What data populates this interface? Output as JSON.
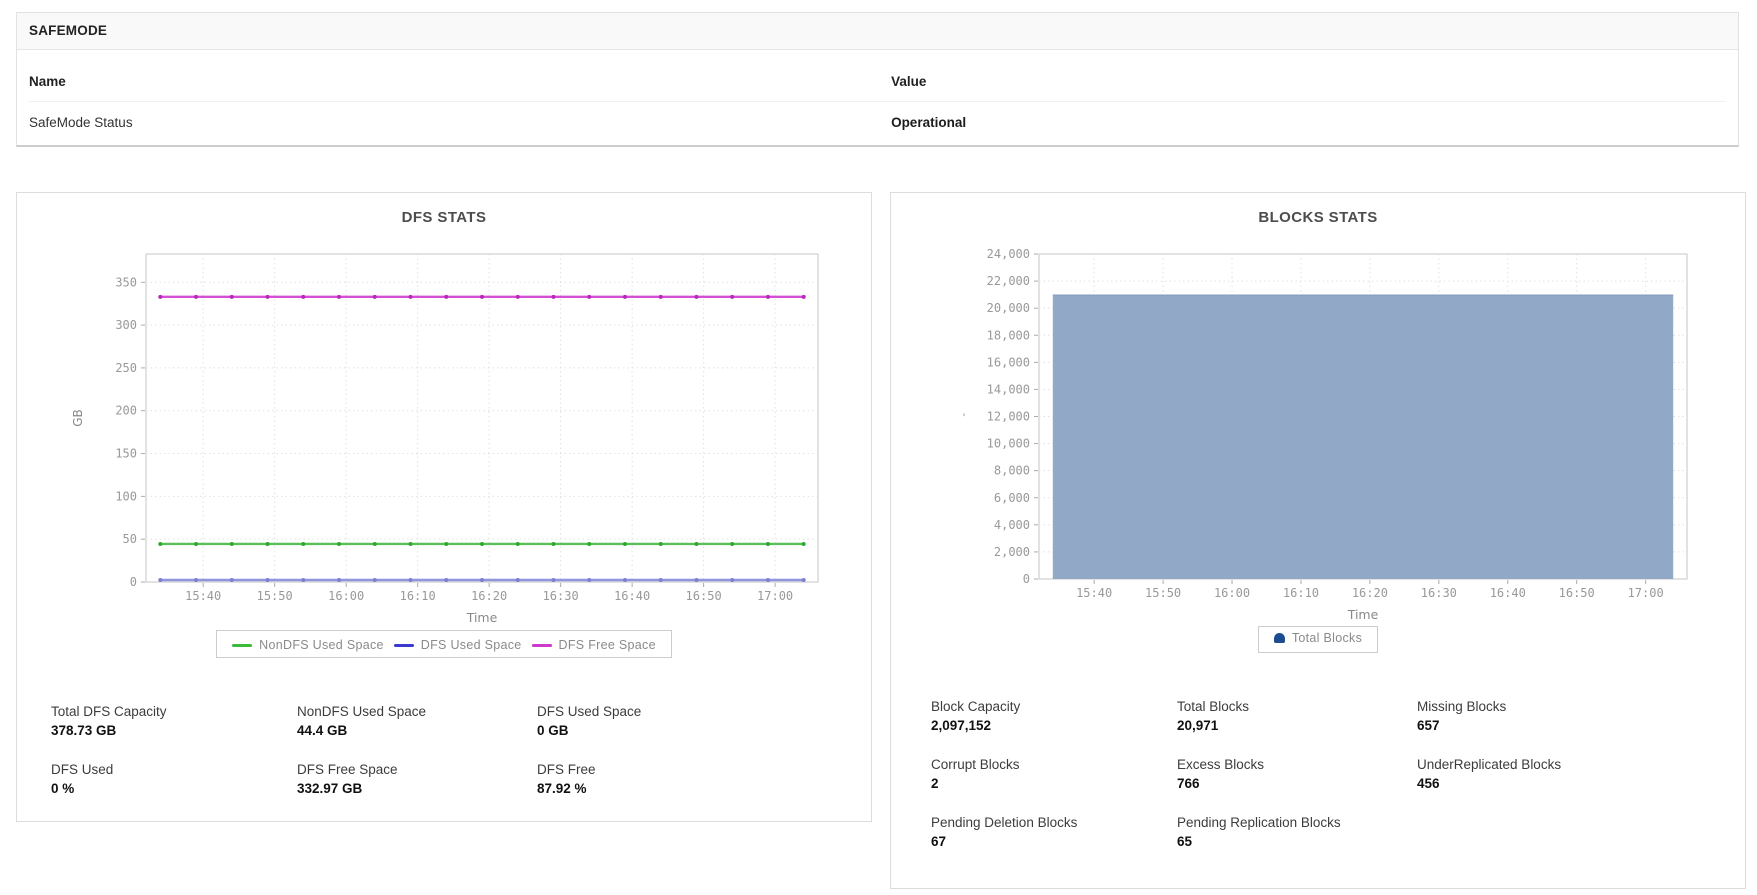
{
  "safemode_table": {
    "title": "SAFEMODE",
    "columns": {
      "name": "Name",
      "value": "Value"
    },
    "rows": [
      {
        "name": "SafeMode Status",
        "value": "Operational"
      }
    ]
  },
  "dfs_panel": {
    "title": "DFS STATS",
    "stats": [
      {
        "label": "Total DFS Capacity",
        "value": "378.73 GB"
      },
      {
        "label": "NonDFS Used Space",
        "value": "44.4 GB"
      },
      {
        "label": "DFS Used Space",
        "value": "0 GB"
      },
      {
        "label": "DFS Used",
        "value": "0 %"
      },
      {
        "label": "DFS Free Space",
        "value": "332.97 GB"
      },
      {
        "label": "DFS Free",
        "value": "87.92 %"
      }
    ]
  },
  "blocks_panel": {
    "title": "BLOCKS STATS",
    "stats": [
      {
        "label": "Block Capacity",
        "value": "2,097,152"
      },
      {
        "label": "Total Blocks",
        "value": "20,971"
      },
      {
        "label": "Missing Blocks",
        "value": "657"
      },
      {
        "label": "Corrupt Blocks",
        "value": "2"
      },
      {
        "label": "Excess Blocks",
        "value": "766"
      },
      {
        "label": "UnderReplicated Blocks",
        "value": "456"
      },
      {
        "label": "Pending Deletion Blocks",
        "value": "67"
      },
      {
        "label": "Pending Replication Blocks",
        "value": "65"
      }
    ]
  },
  "chart_data": [
    {
      "type": "line",
      "title": "DFS STATS",
      "xlabel": "Time",
      "ylabel": "GB",
      "x_tick_labels": [
        "15:40",
        "15:50",
        "16:00",
        "16:10",
        "16:20",
        "16:30",
        "16:40",
        "16:50",
        "17:00"
      ],
      "x_start": "15:34",
      "x_end": "17:04",
      "interval_min": 5,
      "ylim": [
        0,
        383
      ],
      "y_ticks": [
        0,
        50,
        100,
        150,
        200,
        250,
        300,
        350
      ],
      "grid": true,
      "legend_position": "bottom",
      "series": [
        {
          "name": "NonDFS Used Space",
          "constant": true,
          "value": 44.4,
          "line_color": "#5abf5a",
          "marker_color": "#2ea82e",
          "legend_color": "#3bbb3b"
        },
        {
          "name": "DFS Used Space",
          "constant": true,
          "value": 0,
          "line_color": "#9095de",
          "marker_color": "#7b80d2",
          "legend_color": "#3a3ad0"
        },
        {
          "name": "DFS Free Space",
          "constant": true,
          "value": 332.97,
          "line_color": "#d54fd5",
          "marker_color": "#bb26bb",
          "legend_color": "#cc39cc"
        }
      ]
    },
    {
      "type": "area",
      "title": "BLOCKS STATS",
      "xlabel": "Time",
      "ylabel": "'",
      "x_tick_labels": [
        "15:40",
        "15:50",
        "16:00",
        "16:10",
        "16:20",
        "16:30",
        "16:40",
        "16:50",
        "17:00"
      ],
      "x_start": "15:34",
      "x_end": "17:04",
      "interval_min": 5,
      "ylim": [
        0,
        24000
      ],
      "y_ticks": [
        0,
        2000,
        4000,
        6000,
        8000,
        10000,
        12000,
        14000,
        16000,
        18000,
        20000,
        22000,
        24000
      ],
      "y_tick_format": "comma",
      "grid": true,
      "legend_position": "bottom",
      "series": [
        {
          "name": "Total Blocks",
          "constant": true,
          "value": 20971,
          "fill_color": "#91a8c6",
          "edge_color": "#849cbc",
          "legend_color": "#1c4d8f"
        }
      ]
    }
  ]
}
